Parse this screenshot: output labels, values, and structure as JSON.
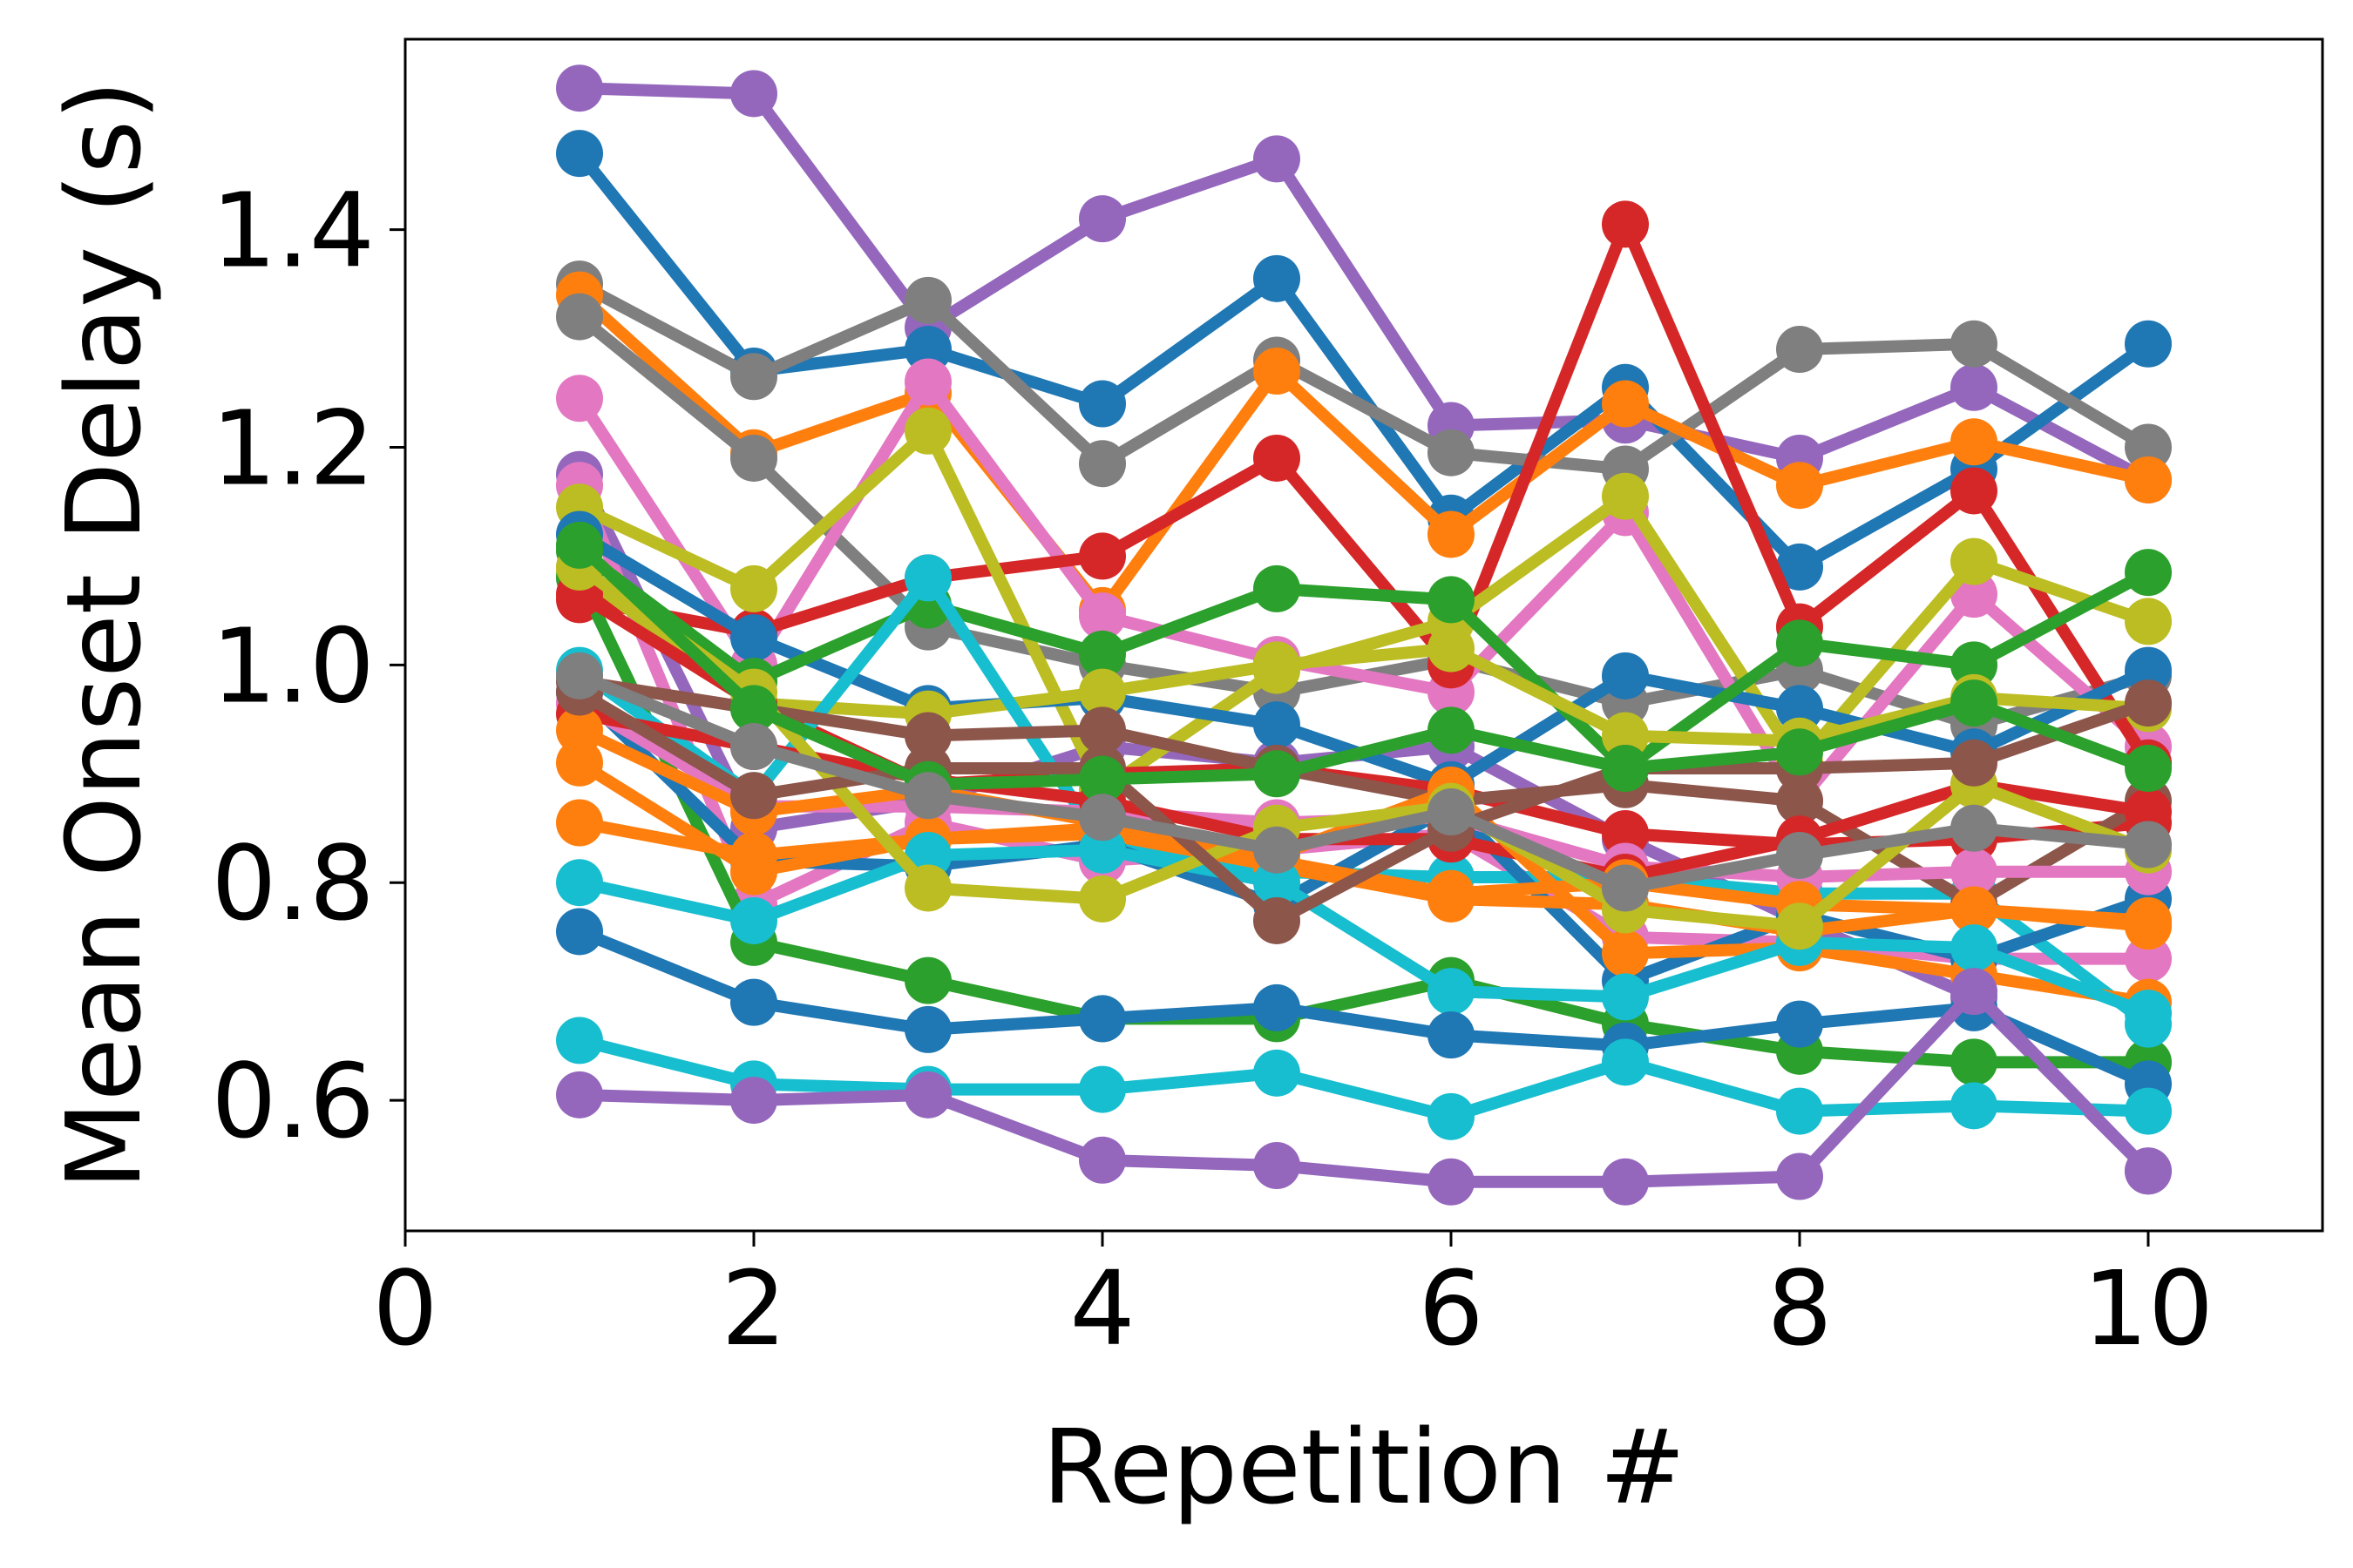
{
  "chart_data": {
    "type": "line",
    "xlabel": "Repetition #",
    "ylabel": "Mean Onset Delay (s)",
    "xlim": [
      0,
      11
    ],
    "ylim": [
      0.48,
      1.575
    ],
    "xticks": [
      0,
      2,
      4,
      6,
      8,
      10
    ],
    "xtick_labels": [
      "0",
      "2",
      "4",
      "6",
      "8",
      "10"
    ],
    "yticks": [
      0.6,
      0.8,
      1.0,
      1.2,
      1.4
    ],
    "ytick_labels": [
      "0.6",
      "0.8",
      "1.0",
      "1.2",
      "1.4"
    ],
    "grid": false,
    "legend": "none",
    "x": [
      1,
      2,
      3,
      4,
      5,
      6,
      7,
      8,
      9,
      10
    ],
    "series": [
      {
        "color": "#9467bd",
        "values": [
          1.53,
          1.525,
          1.31,
          1.41,
          1.465,
          1.22,
          1.225,
          1.19,
          1.255,
          1.17
        ]
      },
      {
        "color": "#1f77b4",
        "values": [
          1.47,
          1.27,
          1.29,
          1.24,
          1.355,
          1.135,
          1.255,
          1.09,
          1.18,
          1.295
        ]
      },
      {
        "color": "#7f7f7f",
        "values": [
          1.35,
          1.265,
          1.335,
          1.185,
          1.28,
          1.195,
          1.18,
          1.29,
          1.295,
          1.2
        ]
      },
      {
        "color": "#ff7f0e",
        "values": [
          1.34,
          1.195,
          1.25,
          1.05,
          1.27,
          1.12,
          1.24,
          1.165,
          1.205,
          1.17
        ]
      },
      {
        "color": "#7f7f7f",
        "values": [
          1.32,
          1.19,
          1.035,
          1.0,
          0.975,
          1.005,
          0.965,
          0.995,
          0.945,
          0.99
        ]
      },
      {
        "color": "#e377c2",
        "values": [
          1.245,
          1.0,
          1.26,
          1.045,
          1.005,
          0.975,
          1.14,
          0.875,
          1.065,
          0.925
        ]
      },
      {
        "color": "#d62728",
        "values": [
          1.06,
          1.03,
          1.08,
          1.1,
          1.19,
          1.0,
          1.405,
          1.035,
          1.16,
          0.91
        ]
      },
      {
        "color": "#9467bd",
        "values": [
          1.175,
          0.85,
          0.875,
          0.925,
          0.91,
          0.925,
          0.84,
          0.765,
          0.695,
          0.535
        ]
      },
      {
        "color": "#e377c2",
        "values": [
          1.165,
          0.78,
          0.855,
          0.82,
          0.83,
          0.845,
          0.75,
          0.745,
          0.73,
          0.73
        ]
      },
      {
        "color": "#bcbd22",
        "values": [
          1.145,
          1.07,
          1.215,
          0.885,
          0.995,
          1.04,
          1.155,
          0.91,
          1.095,
          1.04
        ]
      },
      {
        "color": "#1f77b4",
        "values": [
          1.12,
          1.025,
          0.96,
          0.97,
          0.945,
          0.89,
          0.99,
          0.96,
          0.92,
          0.995
        ]
      },
      {
        "color": "#2ca02c",
        "values": [
          1.105,
          0.985,
          1.055,
          1.01,
          1.07,
          1.06,
          0.905,
          1.02,
          1.0,
          1.085
        ]
      },
      {
        "color": "#bcbd22",
        "values": [
          1.085,
          0.965,
          0.955,
          0.975,
          1.0,
          1.015,
          0.935,
          0.93,
          0.97,
          0.96
        ]
      },
      {
        "color": "#2ca02c",
        "values": [
          1.08,
          0.745,
          0.71,
          0.675,
          0.675,
          0.71,
          0.67,
          0.645,
          0.635,
          0.635
        ]
      },
      {
        "color": "#d62728",
        "values": [
          1.065,
          0.965,
          0.89,
          0.9,
          0.905,
          0.885,
          0.845,
          0.835,
          0.84,
          0.855
        ]
      },
      {
        "color": "#17becf",
        "values": [
          0.995,
          0.88,
          1.08,
          0.835,
          0.81,
          0.805,
          0.805,
          0.79,
          0.79,
          0.67
        ]
      },
      {
        "color": "#8c564b",
        "values": [
          0.985,
          0.96,
          0.935,
          0.94,
          0.905,
          0.875,
          0.89,
          0.875,
          0.78,
          0.875
        ]
      },
      {
        "color": "#1f77b4",
        "values": [
          0.975,
          0.82,
          0.815,
          0.835,
          0.78,
          0.87,
          0.71,
          0.77,
          0.73,
          0.785
        ]
      },
      {
        "color": "#e377c2",
        "values": [
          0.965,
          0.87,
          0.87,
          0.865,
          0.855,
          0.86,
          0.815,
          0.805,
          0.81,
          0.81
        ]
      },
      {
        "color": "#d62728",
        "values": [
          0.955,
          0.925,
          0.895,
          0.875,
          0.84,
          0.84,
          0.805,
          0.84,
          0.89,
          0.865
        ]
      },
      {
        "color": "#ff7f0e",
        "values": [
          0.94,
          0.865,
          0.885,
          0.855,
          0.825,
          0.885,
          0.735,
          0.74,
          0.715,
          0.69
        ]
      },
      {
        "color": "#ff7f0e",
        "values": [
          0.91,
          0.81,
          0.84,
          0.845,
          0.815,
          0.785,
          0.78,
          0.755,
          0.775,
          0.765
        ]
      },
      {
        "color": "#ff7f0e",
        "values": [
          0.855,
          0.825,
          0.84,
          0.85,
          0.82,
          0.79,
          0.8,
          0.78,
          0.775,
          0.76
        ]
      },
      {
        "color": "#17becf",
        "values": [
          0.8,
          0.765,
          0.825,
          0.83,
          0.8,
          0.7,
          0.695,
          0.745,
          0.74,
          0.68
        ]
      },
      {
        "color": "#1f77b4",
        "values": [
          0.755,
          0.69,
          0.665,
          0.675,
          0.685,
          0.66,
          0.65,
          0.67,
          0.685,
          0.615
        ]
      },
      {
        "color": "#17becf",
        "values": [
          0.655,
          0.615,
          0.61,
          0.61,
          0.625,
          0.585,
          0.635,
          0.59,
          0.595,
          0.59
        ]
      },
      {
        "color": "#9467bd",
        "values": [
          0.605,
          0.6,
          0.605,
          0.545,
          0.54,
          0.525,
          0.525,
          0.53,
          0.7,
          0.535
        ]
      },
      {
        "color": "#bcbd22",
        "values": [
          1.09,
          0.975,
          0.795,
          0.785,
          0.85,
          0.87,
          0.775,
          0.76,
          0.89,
          0.83
        ]
      },
      {
        "color": "#8c564b",
        "values": [
          0.975,
          0.88,
          0.905,
          0.905,
          0.765,
          0.85,
          0.905,
          0.905,
          0.91,
          0.965
        ]
      },
      {
        "color": "#2ca02c",
        "values": [
          1.11,
          0.96,
          0.89,
          0.895,
          0.9,
          0.94,
          0.905,
          0.92,
          0.965,
          0.905
        ]
      },
      {
        "color": "#7f7f7f",
        "values": [
          0.99,
          0.925,
          0.88,
          0.86,
          0.83,
          0.865,
          0.795,
          0.825,
          0.85,
          0.835
        ]
      }
    ]
  }
}
